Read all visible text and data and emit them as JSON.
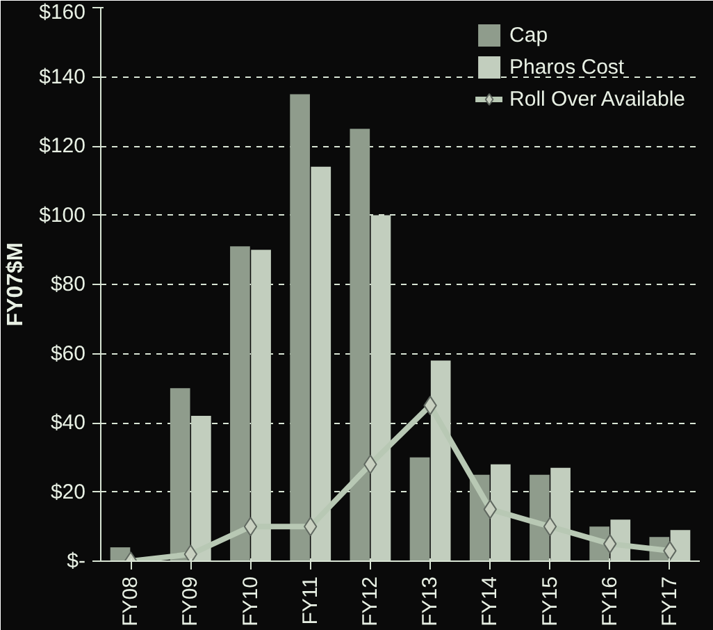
{
  "chart_data": {
    "type": "bar",
    "ylabel": "FY07$M",
    "categories": [
      "FY08",
      "FY09",
      "FY10",
      "FY11",
      "FY12",
      "FY13",
      "FY14",
      "FY15",
      "FY16",
      "FY17"
    ],
    "series": [
      {
        "name": "Cap",
        "color": "#8f9c8c",
        "values": [
          4,
          50,
          91,
          135,
          125,
          30,
          25,
          25,
          10,
          7
        ]
      },
      {
        "name": "Pharos Cost",
        "color": "#c2cebe",
        "values": [
          null,
          42,
          90,
          114,
          100,
          58,
          28,
          27,
          12,
          9
        ]
      },
      {
        "name": "Roll Over Available",
        "type": "line",
        "color": "#b8c8b4",
        "values": [
          0,
          2,
          10,
          10,
          28,
          45,
          15,
          10,
          5,
          3
        ]
      }
    ],
    "ylim": [
      0,
      160
    ],
    "yticks": [
      {
        "value": 0,
        "label": "$-"
      },
      {
        "value": 20,
        "label": "$20"
      },
      {
        "value": 40,
        "label": "$40"
      },
      {
        "value": 60,
        "label": "$60"
      },
      {
        "value": 80,
        "label": "$80"
      },
      {
        "value": 100,
        "label": "$100"
      },
      {
        "value": 120,
        "label": "$120"
      },
      {
        "value": 140,
        "label": "$140"
      },
      {
        "value": 160,
        "label": "$160"
      }
    ],
    "grid": "y",
    "legend": "top right",
    "marker": "diamond"
  }
}
